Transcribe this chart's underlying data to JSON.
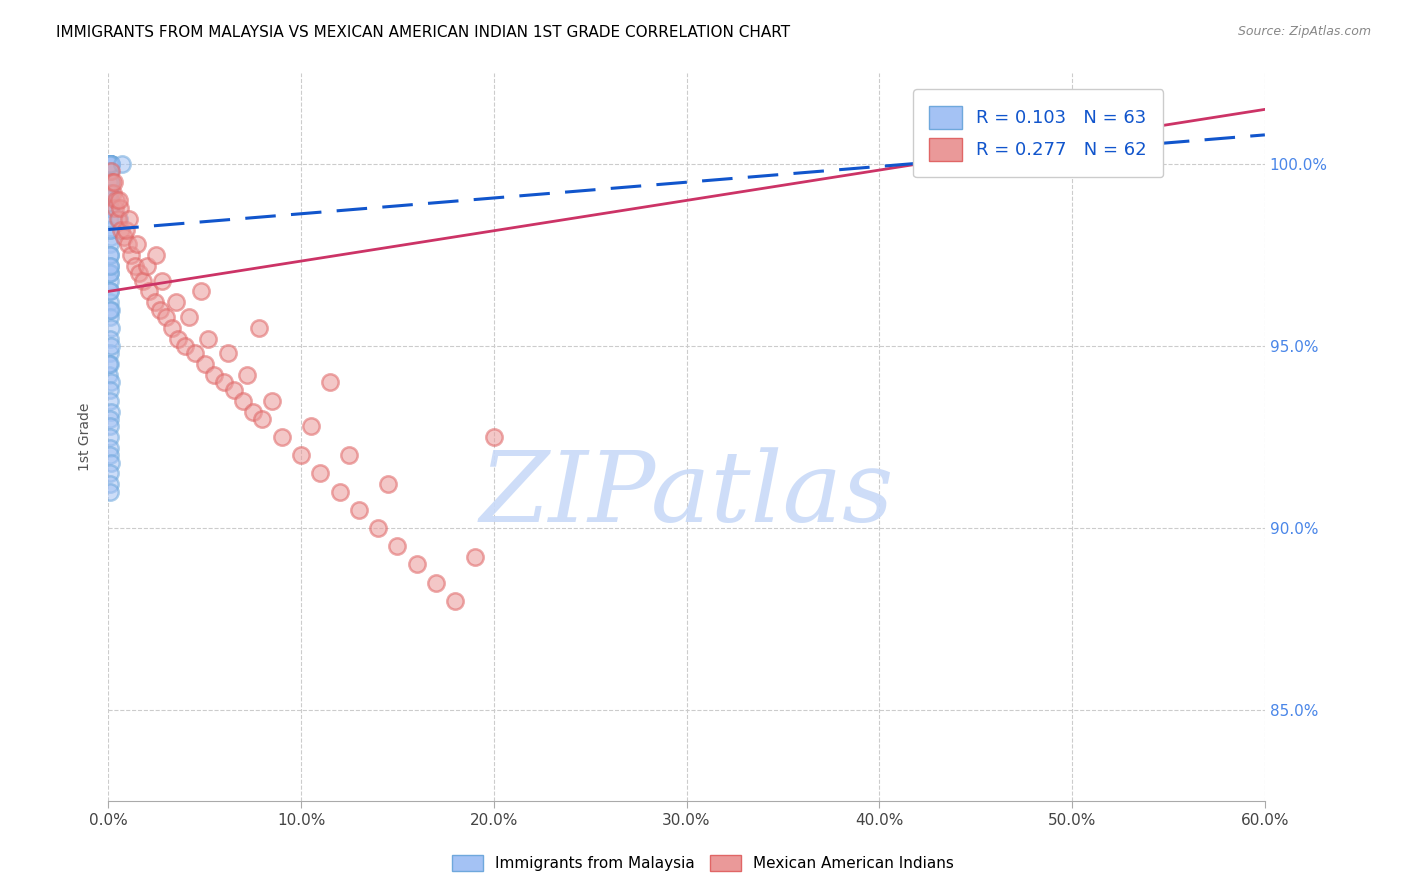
{
  "title": "IMMIGRANTS FROM MALAYSIA VS MEXICAN AMERICAN INDIAN 1ST GRADE CORRELATION CHART",
  "source": "Source: ZipAtlas.com",
  "xlabel_vals": [
    0.0,
    10.0,
    20.0,
    30.0,
    40.0,
    50.0,
    60.0
  ],
  "ylabel_vals": [
    85.0,
    90.0,
    95.0,
    100.0
  ],
  "ylabel_label": "1st Grade",
  "xmin": 0.0,
  "xmax": 60.0,
  "ymin": 82.5,
  "ymax": 102.5,
  "legend_blue_r": "R = 0.103",
  "legend_blue_n": "N = 63",
  "legend_pink_r": "R = 0.277",
  "legend_pink_n": "N = 62",
  "blue_color": "#a4c2f4",
  "pink_color": "#ea9999",
  "blue_edge_color": "#6fa8dc",
  "pink_edge_color": "#e06666",
  "blue_line_color": "#1155cc",
  "pink_line_color": "#cc3366",
  "watermark": "ZIPatlas",
  "watermark_color": "#c9daf8",
  "grid_color": "#cccccc",
  "title_color": "#000000",
  "right_label_color": "#4a86e8",
  "blue_line_x0": 0.0,
  "blue_line_x1": 60.0,
  "blue_line_y0": 98.2,
  "blue_line_y1": 100.8,
  "pink_line_x0": 0.0,
  "pink_line_x1": 60.0,
  "pink_line_y0": 96.5,
  "pink_line_y1": 101.5,
  "blue_scatter_x": [
    0.05,
    0.08,
    0.1,
    0.12,
    0.15,
    0.1,
    0.08,
    0.12,
    0.06,
    0.09,
    0.11,
    0.07,
    0.1,
    0.13,
    0.09,
    0.08,
    0.11,
    0.06,
    0.1,
    0.12,
    0.08,
    0.1,
    0.09,
    0.07,
    0.11,
    0.08,
    0.1,
    0.12,
    0.09,
    0.06,
    0.1,
    0.11,
    0.08,
    0.09,
    0.1,
    0.07,
    0.12,
    0.08,
    0.11,
    0.09,
    0.06,
    0.13,
    0.1,
    0.08,
    0.12,
    0.09,
    0.07,
    0.11,
    0.09,
    0.1,
    0.14,
    0.07,
    0.1,
    0.08,
    0.12,
    0.1,
    0.06,
    0.11,
    0.09,
    0.1,
    0.08,
    0.55,
    0.72
  ],
  "blue_scatter_y": [
    100.0,
    100.0,
    100.0,
    100.0,
    100.0,
    100.0,
    100.0,
    100.0,
    100.0,
    100.0,
    100.0,
    100.0,
    99.8,
    99.5,
    99.2,
    99.0,
    98.8,
    98.5,
    98.2,
    98.0,
    97.8,
    97.5,
    97.2,
    97.0,
    96.8,
    96.5,
    96.2,
    96.0,
    95.8,
    99.5,
    98.8,
    98.2,
    97.5,
    97.0,
    96.5,
    96.0,
    95.5,
    95.2,
    94.8,
    94.5,
    94.2,
    94.0,
    93.8,
    93.5,
    93.2,
    93.0,
    92.8,
    92.5,
    92.2,
    92.0,
    91.8,
    91.5,
    91.2,
    91.0,
    95.0,
    98.5,
    94.5,
    99.2,
    99.8,
    97.2,
    100.0,
    98.5,
    100.0
  ],
  "pink_scatter_x": [
    0.12,
    0.18,
    0.25,
    0.35,
    0.5,
    0.65,
    0.8,
    1.0,
    1.2,
    1.4,
    1.6,
    1.8,
    2.1,
    2.4,
    2.7,
    3.0,
    3.3,
    3.6,
    4.0,
    4.5,
    5.0,
    5.5,
    6.0,
    6.5,
    7.0,
    7.5,
    8.0,
    9.0,
    10.0,
    11.0,
    12.0,
    13.0,
    14.0,
    15.0,
    16.0,
    17.0,
    18.0,
    19.0,
    20.0,
    0.4,
    0.6,
    0.9,
    1.5,
    2.0,
    2.8,
    3.5,
    4.2,
    5.2,
    6.2,
    7.2,
    8.5,
    10.5,
    12.5,
    14.5,
    0.3,
    0.55,
    1.1,
    2.5,
    4.8,
    7.8,
    11.5,
    43.0
  ],
  "pink_scatter_y": [
    99.8,
    99.5,
    99.2,
    98.8,
    98.5,
    98.2,
    98.0,
    97.8,
    97.5,
    97.2,
    97.0,
    96.8,
    96.5,
    96.2,
    96.0,
    95.8,
    95.5,
    95.2,
    95.0,
    94.8,
    94.5,
    94.2,
    94.0,
    93.8,
    93.5,
    93.2,
    93.0,
    92.5,
    92.0,
    91.5,
    91.0,
    90.5,
    90.0,
    89.5,
    89.0,
    88.5,
    88.0,
    89.2,
    92.5,
    99.0,
    98.8,
    98.2,
    97.8,
    97.2,
    96.8,
    96.2,
    95.8,
    95.2,
    94.8,
    94.2,
    93.5,
    92.8,
    92.0,
    91.2,
    99.5,
    99.0,
    98.5,
    97.5,
    96.5,
    95.5,
    94.0,
    101.0
  ]
}
